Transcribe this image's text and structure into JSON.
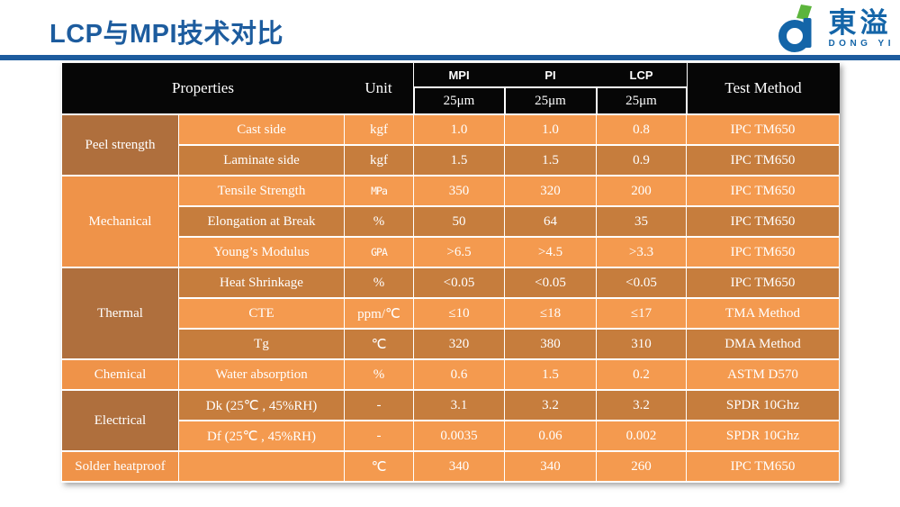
{
  "slide": {
    "title": "LCP与MPI技术对比"
  },
  "logo": {
    "cn": "東溢",
    "en": "DONG YI"
  },
  "table": {
    "head": {
      "properties": "Properties",
      "unit": "Unit",
      "materials": [
        {
          "name": "MPI",
          "thickness": "25μm"
        },
        {
          "name": "PI",
          "thickness": "25μm"
        },
        {
          "name": "LCP",
          "thickness": "25μm"
        }
      ],
      "test_method": "Test Method"
    },
    "groups": [
      {
        "category": "Peel strength",
        "shade": "dark",
        "rows": [
          {
            "property": "Cast side",
            "unit": "kgf",
            "unit_narrow": false,
            "mpi": "1.0",
            "pi": "1.0",
            "lcp": "0.8",
            "test": "IPC TM650",
            "shade": "light"
          },
          {
            "property": "Laminate side",
            "unit": "kgf",
            "unit_narrow": false,
            "mpi": "1.5",
            "pi": "1.5",
            "lcp": "0.9",
            "test": "IPC TM650",
            "shade": "dark"
          }
        ]
      },
      {
        "category": "Mechanical",
        "shade": "light",
        "rows": [
          {
            "property": "Tensile Strength",
            "unit": "MPa",
            "unit_narrow": true,
            "mpi": "350",
            "pi": "320",
            "lcp": "200",
            "test": "IPC TM650",
            "shade": "light"
          },
          {
            "property": "Elongation at Break",
            "unit": "%",
            "unit_narrow": false,
            "mpi": "50",
            "pi": "64",
            "lcp": "35",
            "test": "IPC TM650",
            "shade": "dark"
          },
          {
            "property": "Young’s Modulus",
            "unit": "GPA",
            "unit_narrow": true,
            "mpi": ">6.5",
            "pi": ">4.5",
            "lcp": ">3.3",
            "test": "IPC TM650",
            "shade": "light"
          }
        ]
      },
      {
        "category": "Thermal",
        "shade": "dark",
        "rows": [
          {
            "property": "Heat Shrinkage",
            "unit": "%",
            "unit_narrow": false,
            "mpi": "<0.05",
            "pi": "<0.05",
            "lcp": "<0.05",
            "test": "IPC TM650",
            "shade": "dark"
          },
          {
            "property": "CTE",
            "unit": "ppm/℃",
            "unit_narrow": false,
            "mpi": "≤10",
            "pi": "≤18",
            "lcp": "≤17",
            "test": "TMA Method",
            "shade": "light"
          },
          {
            "property": "Tg",
            "unit": "℃",
            "unit_narrow": false,
            "mpi": "320",
            "pi": "380",
            "lcp": "310",
            "test": "DMA Method",
            "shade": "dark"
          }
        ]
      },
      {
        "category": "Chemical",
        "shade": "light",
        "rows": [
          {
            "property": "Water absorption",
            "unit": "%",
            "unit_narrow": false,
            "mpi": "0.6",
            "pi": "1.5",
            "lcp": "0.2",
            "test": "ASTM D570",
            "shade": "light"
          }
        ]
      },
      {
        "category": "Electrical",
        "shade": "dark",
        "rows": [
          {
            "property": "Dk (25℃ , 45%RH)",
            "unit": "-",
            "unit_narrow": false,
            "mpi": "3.1",
            "pi": "3.2",
            "lcp": "3.2",
            "test": "SPDR 10Ghz",
            "shade": "dark"
          },
          {
            "property": "Df (25℃ , 45%RH)",
            "unit": "-",
            "unit_narrow": false,
            "mpi": "0.0035",
            "pi": "0.06",
            "lcp": "0.002",
            "test": "SPDR 10Ghz",
            "shade": "light"
          }
        ]
      },
      {
        "category": "Solder heatproof",
        "shade": "light",
        "rows": [
          {
            "property": "",
            "unit": "℃",
            "unit_narrow": false,
            "mpi": "340",
            "pi": "340",
            "lcp": "260",
            "test": "IPC TM650",
            "shade": "light"
          }
        ]
      }
    ]
  },
  "colors": {
    "accent_blue": "#1D5C9E",
    "logo_blue": "#1465A8",
    "logo_green": "#5CB53C",
    "header_black": "#060606",
    "row_light": "#F49A4F",
    "row_dark": "#C67D3D",
    "category_light": "#EF9349",
    "category_dark": "#AF6F3D"
  }
}
